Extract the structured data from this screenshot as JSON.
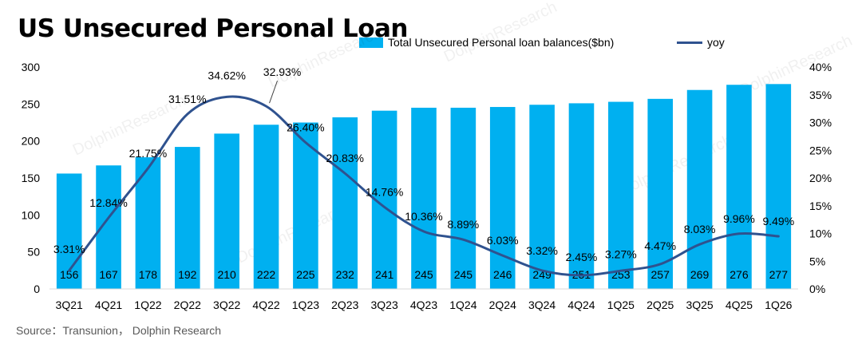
{
  "colors": {
    "bar": "#00b0f0",
    "line": "#2f528f",
    "axis": "#d9d9d9",
    "text": "#000000"
  },
  "watermark": "DolphinResearch",
  "source": "Source：Transunion， Dolphin Research",
  "chart_data": {
    "type": "bar+line",
    "title": "US Unsecured Personal Loan",
    "categories": [
      "3Q21",
      "4Q21",
      "1Q22",
      "2Q22",
      "3Q22",
      "4Q22",
      "1Q23",
      "2Q23",
      "3Q23",
      "4Q23",
      "1Q24",
      "2Q24",
      "3Q24",
      "4Q24",
      "1Q25",
      "2Q25",
      "3Q25",
      "4Q25",
      "1Q26"
    ],
    "series": [
      {
        "name": "Total Unsecured Personal loan balances($bn)",
        "type": "bar",
        "axis": "left",
        "values": [
          156,
          167,
          178,
          192,
          210,
          222,
          225,
          232,
          241,
          245,
          245,
          246,
          249,
          251,
          253,
          257,
          269,
          276,
          277
        ],
        "labels": [
          "156",
          "167",
          "178",
          "192",
          "210",
          "222",
          "225",
          "232",
          "241",
          "245",
          "245",
          "246",
          "249",
          "251",
          "253",
          "257",
          "269",
          "276",
          "277"
        ]
      },
      {
        "name": "yoy",
        "type": "line",
        "axis": "right",
        "values": [
          3.31,
          12.84,
          21.75,
          31.51,
          34.62,
          32.93,
          26.4,
          20.83,
          14.76,
          10.36,
          8.89,
          6.03,
          3.32,
          2.45,
          3.27,
          4.47,
          8.03,
          9.96,
          9.49
        ],
        "labels": [
          "3.31%",
          "12.84%",
          "21.75%",
          "31.51%",
          "34.62%",
          "32.93%",
          "26.40%",
          "20.83%",
          "14.76%",
          "10.36%",
          "8.89%",
          "6.03%",
          "3.32%",
          "2.45%",
          "3.27%",
          "4.47%",
          "8.03%",
          "9.96%",
          "9.49%"
        ]
      }
    ],
    "y_left": {
      "min": 0,
      "max": 300,
      "ticks": [
        "0",
        "50",
        "100",
        "150",
        "200",
        "250",
        "300"
      ]
    },
    "y_right": {
      "min": 0,
      "max": 40,
      "ticks": [
        "0%",
        "5%",
        "10%",
        "15%",
        "20%",
        "25%",
        "30%",
        "35%",
        "40%"
      ]
    },
    "grid": false,
    "legend_position": "top-right"
  }
}
